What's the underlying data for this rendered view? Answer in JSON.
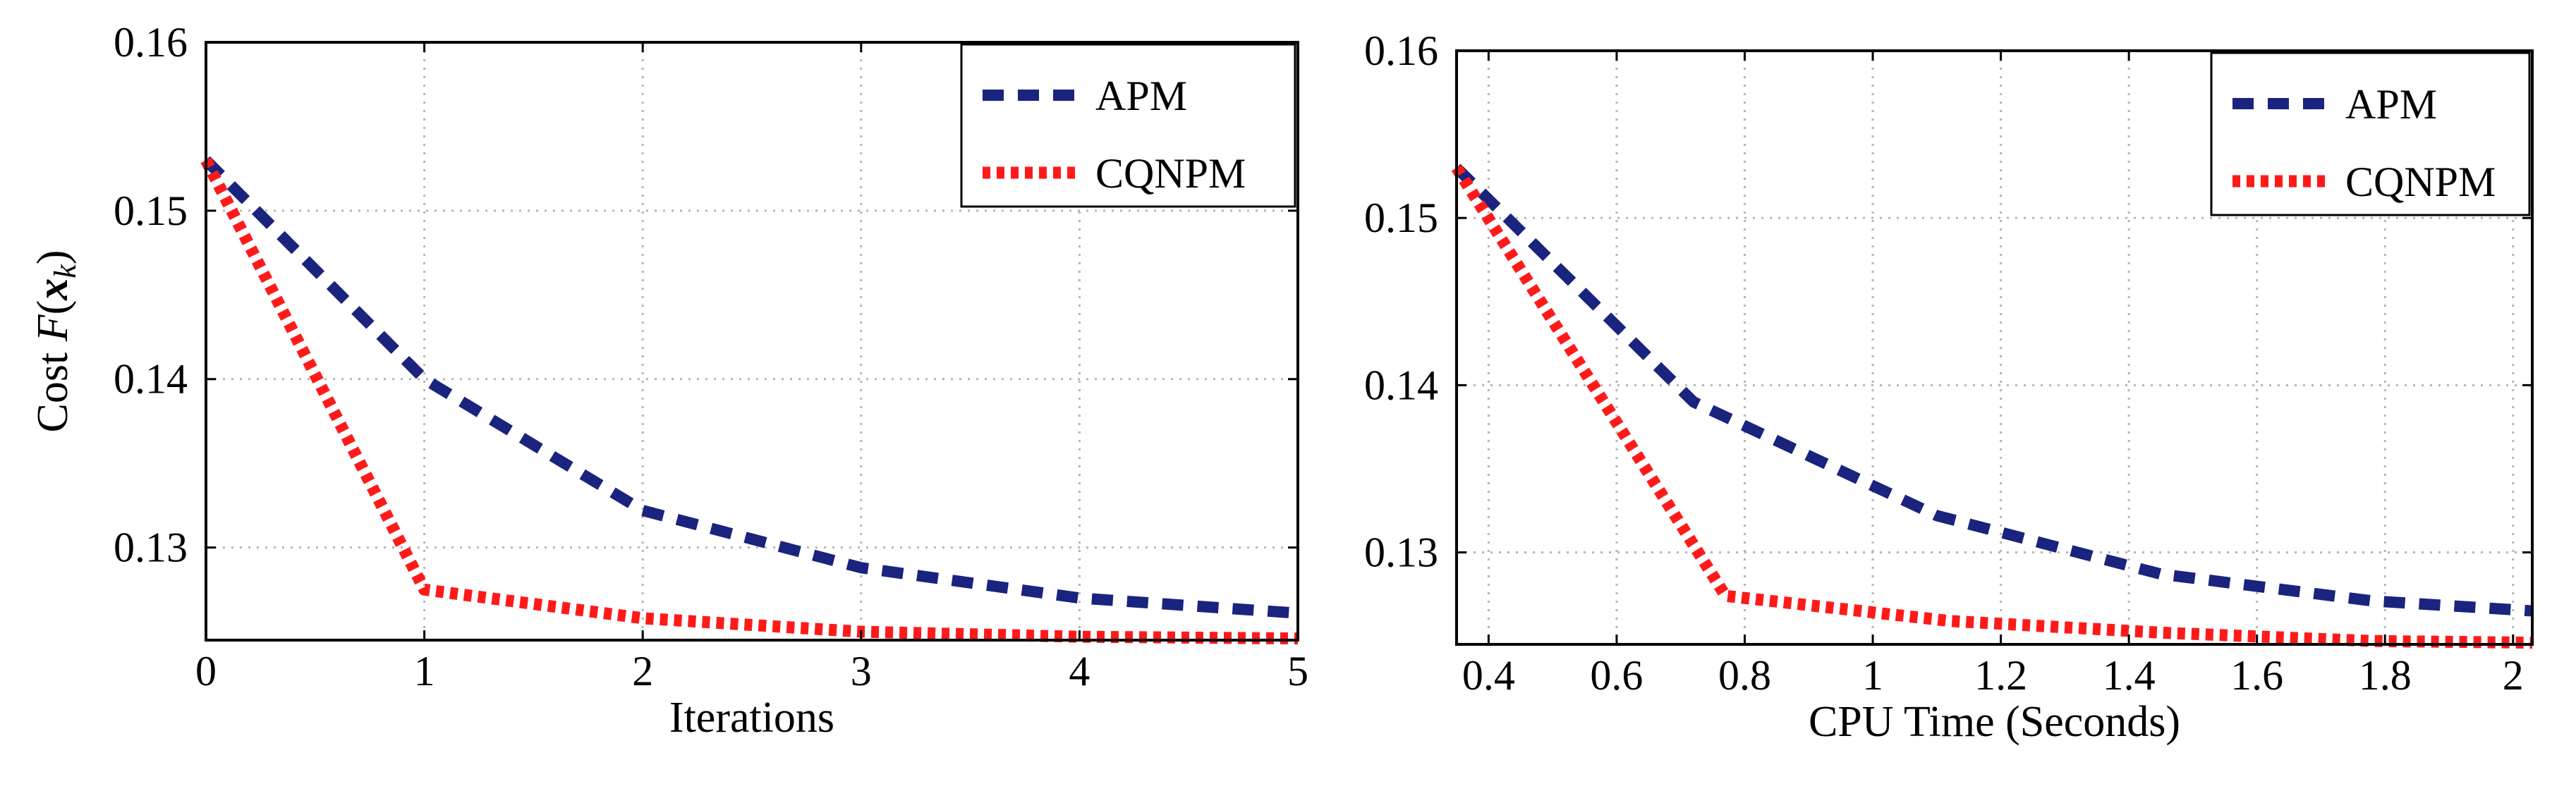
{
  "chart_data": [
    {
      "type": "line",
      "title": "",
      "xlabel": "Iterations",
      "ylabel": "Cost F(x_k)",
      "ylabel_parts": {
        "prefix": "Cost ",
        "func": "F",
        "open": "(",
        "var": "x",
        "sub": "k",
        "close": ")"
      },
      "xlim": [
        0,
        5
      ],
      "ylim": [
        0.1245,
        0.16
      ],
      "xticks": [
        0,
        1,
        2,
        3,
        4,
        5
      ],
      "xtick_labels": [
        "0",
        "1",
        "2",
        "3",
        "4",
        "5"
      ],
      "yticks": [
        0.13,
        0.14,
        0.15,
        0.16
      ],
      "ytick_labels": [
        "0.13",
        "0.14",
        "0.15",
        "0.16"
      ],
      "grid": true,
      "legend_position": "top-right",
      "series": [
        {
          "name": "APM",
          "color": "#1a237e",
          "dash": "dashed",
          "x": [
            0,
            1,
            2,
            3,
            4,
            5
          ],
          "y": [
            0.153,
            0.14,
            0.1322,
            0.1288,
            0.127,
            0.1261
          ]
        },
        {
          "name": "CQNPM",
          "color": "#ff1a1a",
          "dash": "dotted",
          "x": [
            0,
            1,
            2,
            3,
            4,
            5
          ],
          "y": [
            0.153,
            0.1275,
            0.1258,
            0.125,
            0.1247,
            0.1246
          ]
        }
      ]
    },
    {
      "type": "line",
      "title": "",
      "xlabel": "CPU Time (Seconds)",
      "ylabel": "",
      "xlim": [
        0.35,
        2.03
      ],
      "ylim": [
        0.1245,
        0.16
      ],
      "xticks": [
        0.4,
        0.6,
        0.8,
        1,
        1.2,
        1.4,
        1.6,
        1.8,
        2
      ],
      "xtick_labels": [
        "0.4",
        "0.6",
        "0.8",
        "1",
        "1.2",
        "1.4",
        "1.6",
        "1.8",
        "2"
      ],
      "yticks": [
        0.13,
        0.14,
        0.15,
        0.16
      ],
      "ytick_labels": [
        "0.13",
        "0.14",
        "0.15",
        "0.16"
      ],
      "grid": true,
      "legend_position": "top-right",
      "series": [
        {
          "name": "APM",
          "color": "#1a237e",
          "dash": "dashed",
          "x": [
            0.35,
            0.72,
            1.1,
            1.45,
            1.78,
            2.03
          ],
          "y": [
            0.153,
            0.139,
            0.1322,
            0.1287,
            0.1271,
            0.1265
          ]
        },
        {
          "name": "CQNPM",
          "color": "#ff1a1a",
          "dash": "dotted",
          "x": [
            0.35,
            0.77,
            1.12,
            1.45,
            1.78,
            2.03
          ],
          "y": [
            0.153,
            0.1274,
            0.1259,
            0.1252,
            0.1247,
            0.1246
          ]
        }
      ]
    }
  ]
}
